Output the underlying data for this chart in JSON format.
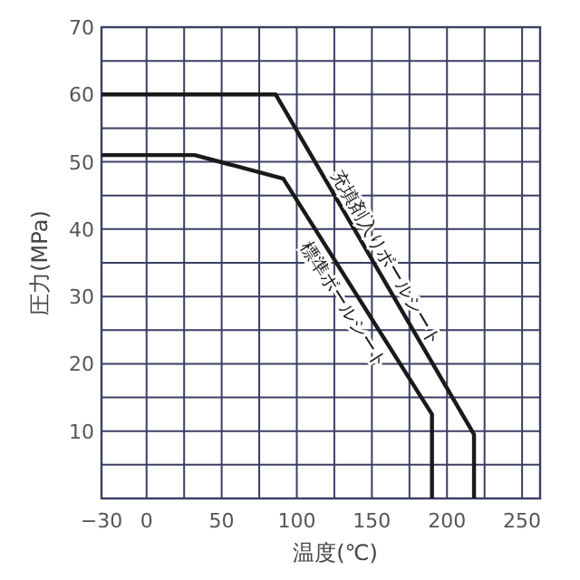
{
  "chart_data": {
    "type": "line",
    "xlabel": "温度(℃)",
    "ylabel": "圧力(MPa)",
    "xlim": [
      -30,
      262
    ],
    "ylim": [
      0,
      70
    ],
    "xticks": [
      {
        "value": -30,
        "label": "−30"
      },
      0,
      {
        "value": 25,
        "label": null
      },
      50,
      {
        "value": 75,
        "label": null
      },
      100,
      {
        "value": 125,
        "label": null
      },
      150,
      {
        "value": 175,
        "label": null
      },
      200,
      {
        "value": 225,
        "label": null
      },
      250
    ],
    "yticks": [
      {
        "value": 5,
        "label": null
      },
      10,
      {
        "value": 15,
        "label": null
      },
      20,
      {
        "value": 25,
        "label": null
      },
      30,
      {
        "value": 35,
        "label": null
      },
      40,
      {
        "value": 45,
        "label": null
      },
      50,
      {
        "value": 55,
        "label": null
      },
      60,
      {
        "value": 65,
        "label": null
      },
      70
    ],
    "grid": true,
    "marker": "none",
    "line_style": "solid",
    "series": [
      {
        "name": "充填剤入りボールシート",
        "color": "#1a1a1a",
        "x": [
          -30,
          86,
          218,
          218
        ],
        "values": [
          60,
          60,
          9.5,
          0
        ]
      },
      {
        "name": "標準ボールシート",
        "color": "#1a1a1a",
        "x": [
          -30,
          32,
          91,
          190,
          190
        ],
        "values": [
          51,
          51,
          47.5,
          12.5,
          0
        ]
      }
    ]
  }
}
